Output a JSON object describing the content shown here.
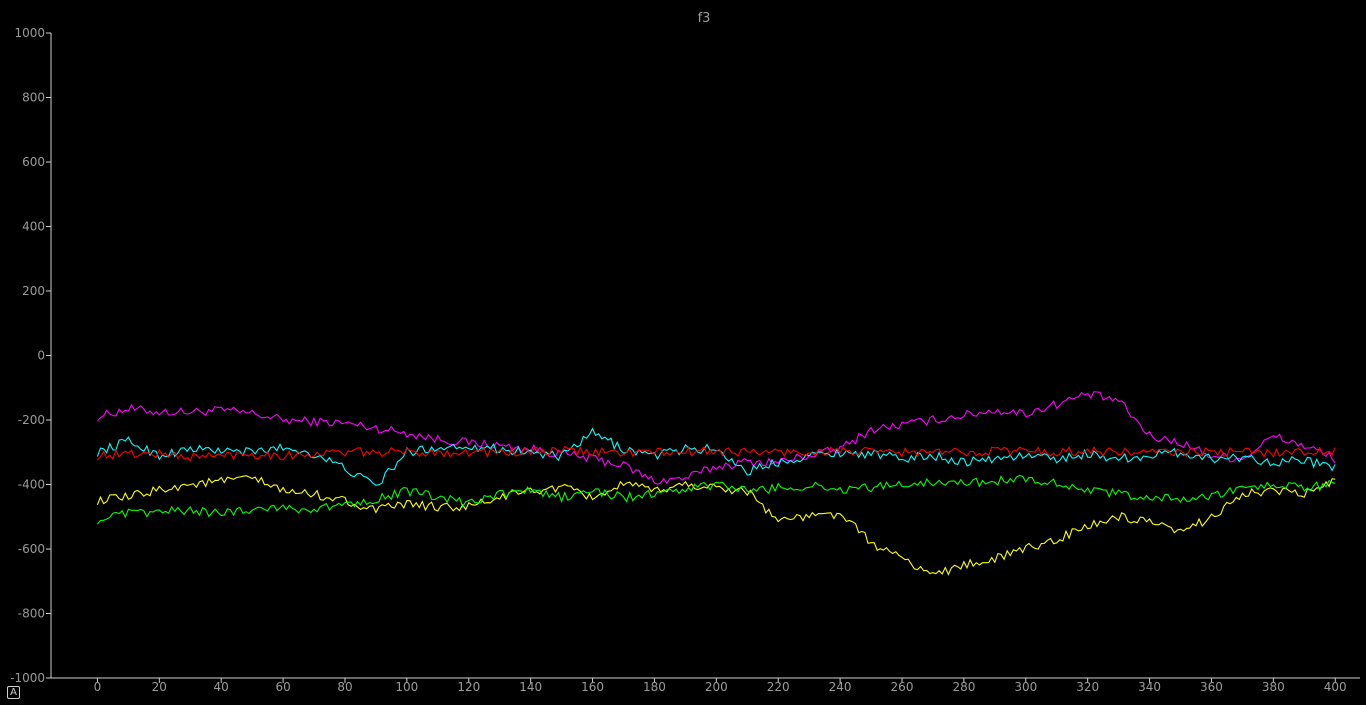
{
  "autoscale_button_label": "A",
  "chart_data": {
    "type": "line",
    "title": "f3",
    "xlabel": "",
    "ylabel": "",
    "xlim": [
      -15,
      408
    ],
    "ylim": [
      -1000,
      1000
    ],
    "x_ticks": [
      0,
      20,
      40,
      60,
      80,
      100,
      120,
      140,
      160,
      180,
      200,
      220,
      240,
      260,
      280,
      300,
      320,
      340,
      360,
      380,
      400
    ],
    "y_ticks": [
      1000,
      800,
      600,
      400,
      200,
      0,
      -200,
      -400,
      -600,
      -800,
      -1000
    ],
    "grid": false,
    "legend": "none",
    "sample_step": 10,
    "x": [
      0,
      10,
      20,
      30,
      40,
      50,
      60,
      70,
      80,
      90,
      100,
      110,
      120,
      130,
      140,
      150,
      160,
      170,
      180,
      190,
      200,
      210,
      220,
      230,
      240,
      250,
      260,
      270,
      280,
      290,
      300,
      310,
      320,
      330,
      340,
      350,
      360,
      370,
      380,
      390,
      400
    ],
    "series": [
      {
        "color": "#ff00ff",
        "values": [
          -190,
          -165,
          -175,
          -175,
          -170,
          -180,
          -200,
          -205,
          -210,
          -225,
          -240,
          -260,
          -270,
          -280,
          -290,
          -305,
          -320,
          -340,
          -390,
          -380,
          -345,
          -330,
          -330,
          -310,
          -290,
          -230,
          -215,
          -200,
          -185,
          -170,
          -180,
          -150,
          -120,
          -140,
          -250,
          -270,
          -310,
          -320,
          -250,
          -280,
          -320
        ]
      },
      {
        "color": "#00ffff",
        "values": [
          -300,
          -265,
          -310,
          -290,
          -295,
          -300,
          -285,
          -305,
          -350,
          -405,
          -300,
          -285,
          -280,
          -290,
          -300,
          -315,
          -240,
          -290,
          -310,
          -290,
          -290,
          -360,
          -330,
          -310,
          -300,
          -305,
          -320,
          -310,
          -330,
          -320,
          -310,
          -320,
          -305,
          -320,
          -310,
          -300,
          -320,
          -315,
          -330,
          -325,
          -350
        ]
      },
      {
        "color": "#ff0000",
        "values": [
          -310,
          -305,
          -305,
          -315,
          -310,
          -305,
          -310,
          -305,
          -300,
          -300,
          -300,
          -300,
          -300,
          -300,
          -300,
          -295,
          -300,
          -300,
          -300,
          -300,
          -295,
          -300,
          -300,
          -300,
          -295,
          -300,
          -300,
          -300,
          -300,
          -295,
          -295,
          -300,
          -295,
          -300,
          -300,
          -300,
          -300,
          -300,
          -300,
          -300,
          -295
        ]
      },
      {
        "color": "#ffff00",
        "values": [
          -450,
          -440,
          -415,
          -400,
          -390,
          -380,
          -420,
          -430,
          -450,
          -480,
          -460,
          -470,
          -470,
          -440,
          -420,
          -410,
          -440,
          -400,
          -420,
          -400,
          -410,
          -420,
          -510,
          -500,
          -490,
          -580,
          -630,
          -680,
          -650,
          -630,
          -600,
          -570,
          -530,
          -500,
          -520,
          -550,
          -500,
          -430,
          -420,
          -430,
          -390
        ]
      },
      {
        "color": "#00ff00",
        "values": [
          -510,
          -490,
          -485,
          -480,
          -490,
          -475,
          -470,
          -480,
          -460,
          -445,
          -420,
          -440,
          -460,
          -430,
          -420,
          -440,
          -420,
          -440,
          -430,
          -415,
          -400,
          -420,
          -410,
          -405,
          -415,
          -410,
          -400,
          -390,
          -395,
          -390,
          -380,
          -395,
          -420,
          -430,
          -440,
          -445,
          -440,
          -410,
          -400,
          -410,
          -400
        ]
      }
    ]
  }
}
